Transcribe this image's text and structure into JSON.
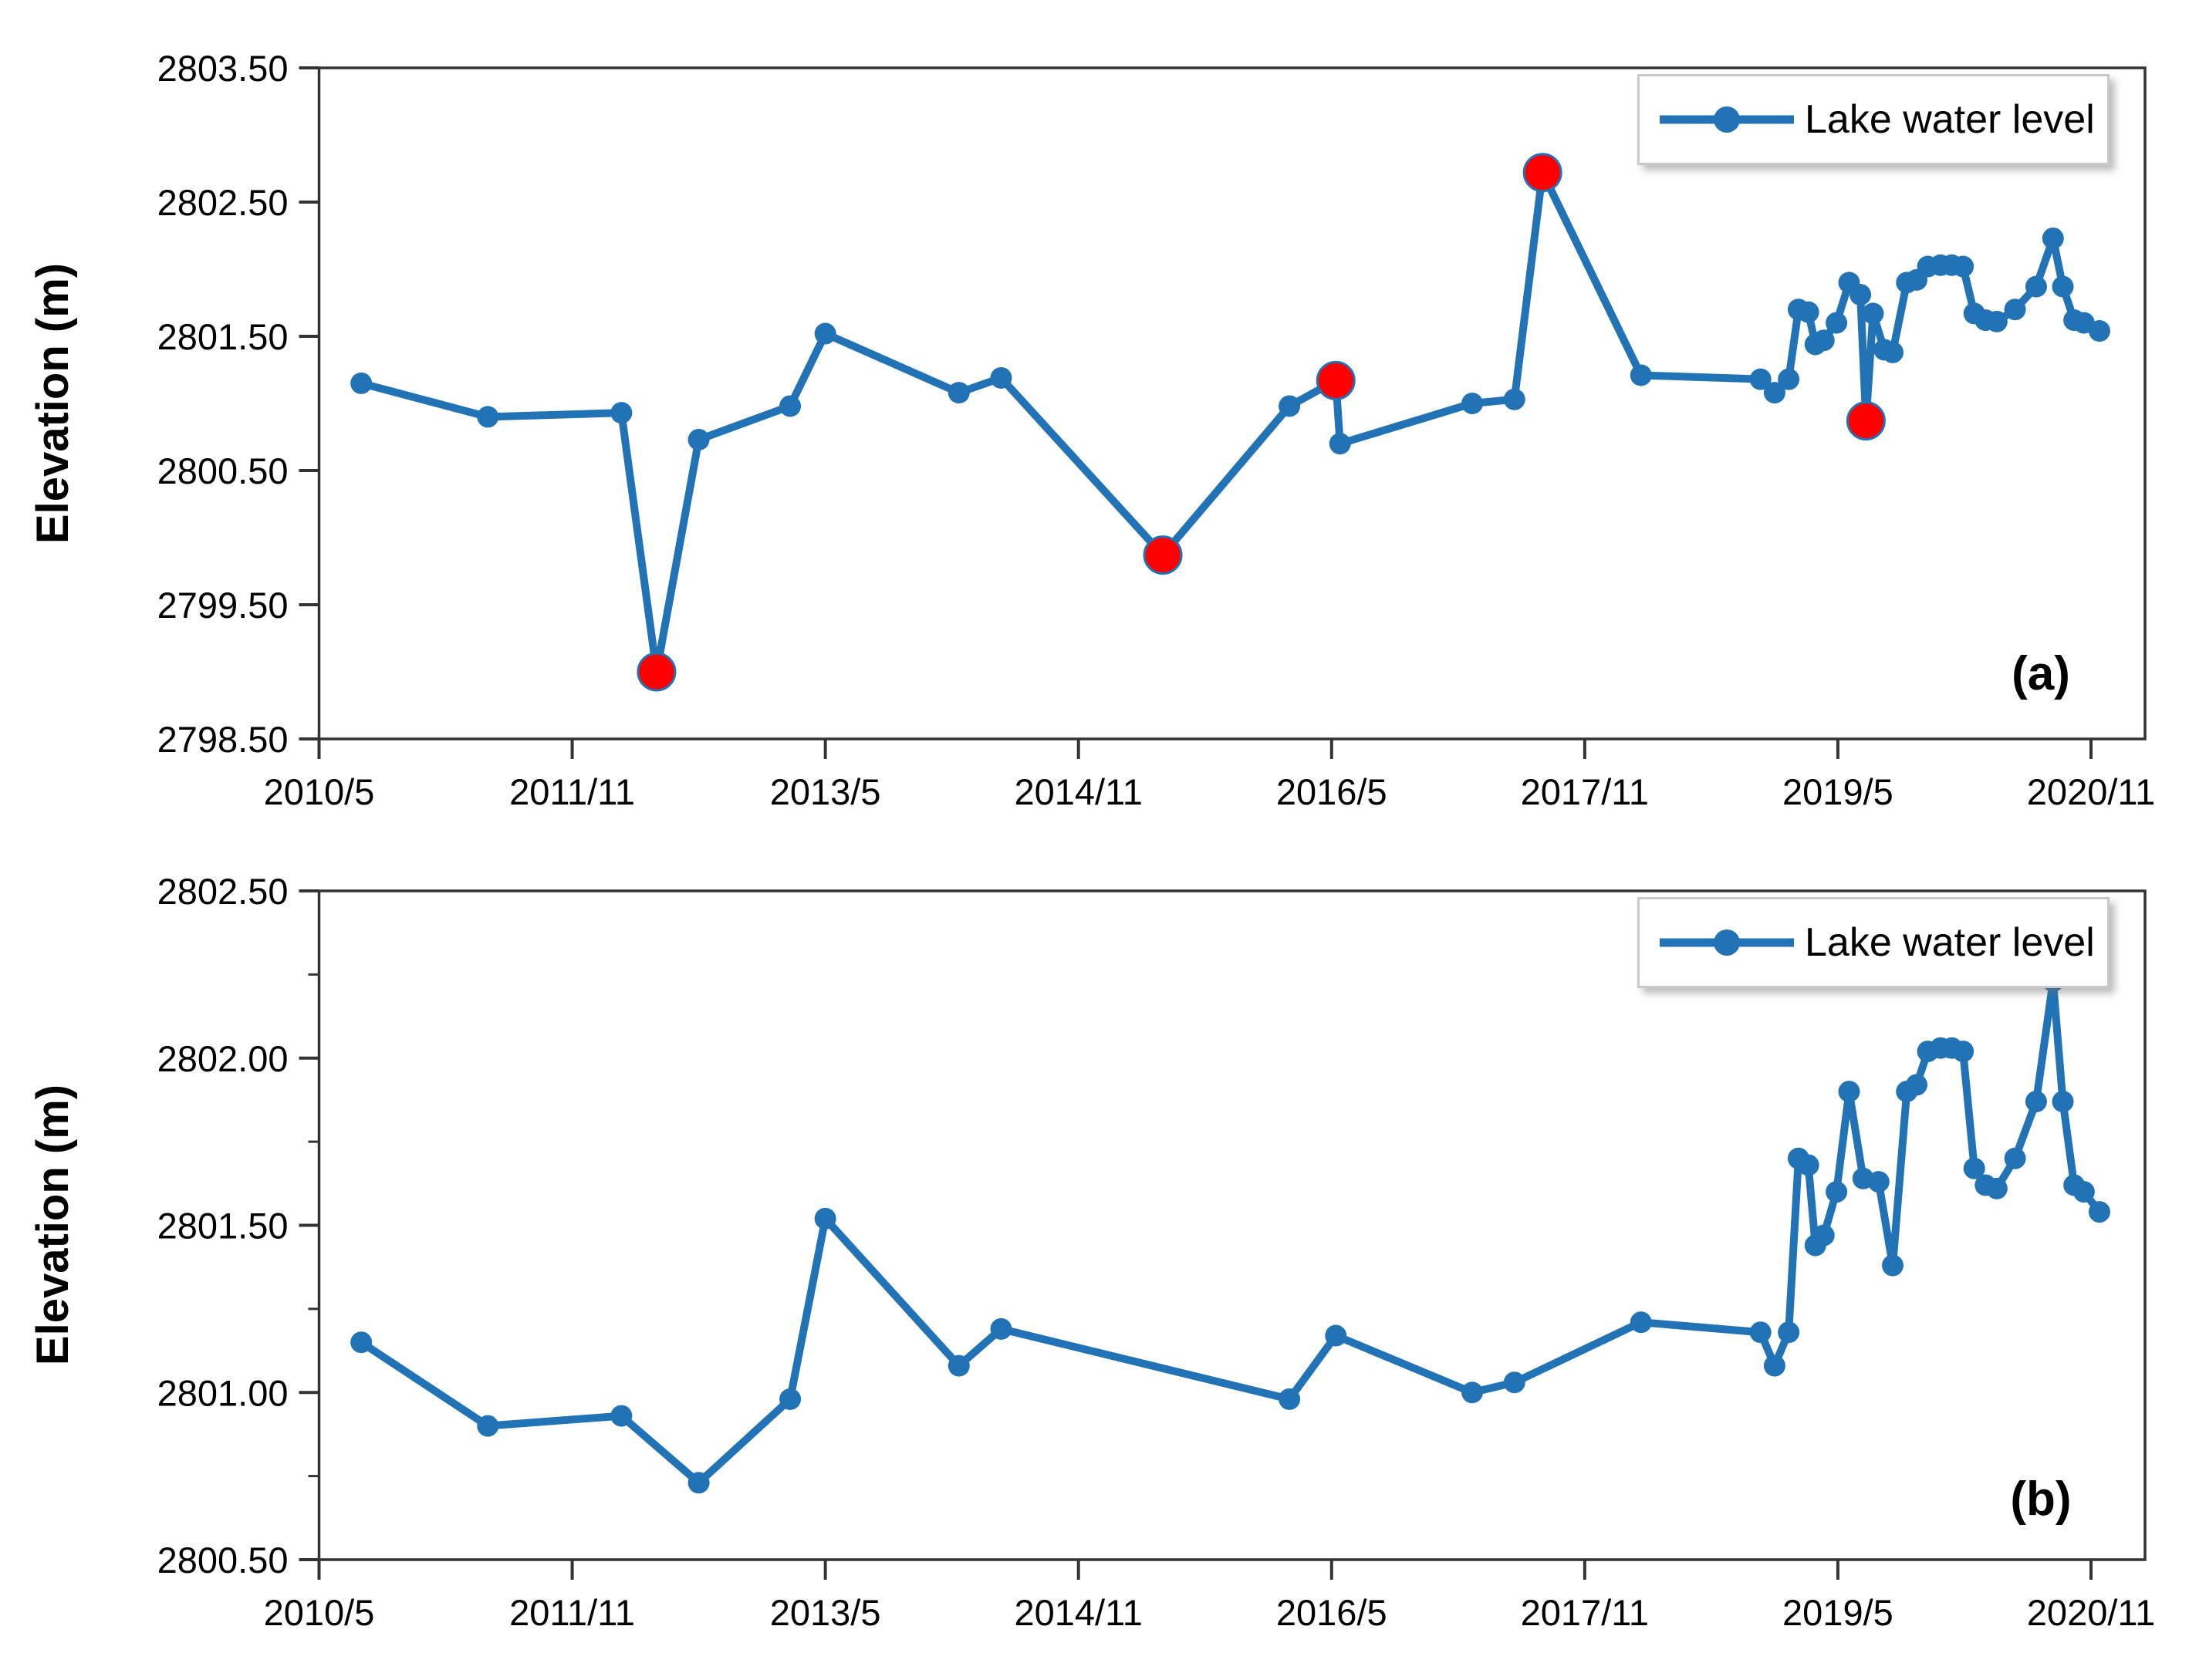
{
  "figure": {
    "background": "#ffffff",
    "accent_blue": "#2173b5",
    "outlier_red": "#ff0000",
    "axis_color": "#333333"
  },
  "chart_data": [
    {
      "type": "line",
      "panel_label": "(a)",
      "ylabel": "Elevation (m)",
      "xlabel": "",
      "legend": [
        "Lake water level"
      ],
      "legend_position": "top-right",
      "grid": false,
      "ylim": [
        2798.5,
        2803.5
      ],
      "ytick_step": 1.0,
      "ytick_labels": [
        "2798.50",
        "2799.50",
        "2800.50",
        "2801.50",
        "2802.50",
        "2803.50"
      ],
      "xtick_months": [
        0,
        18,
        36,
        54,
        72,
        90,
        108,
        126
      ],
      "xtick_labels": [
        "2010/5",
        "2011/11",
        "2013/5",
        "2014/11",
        "2016/5",
        "2017/11",
        "2019/5",
        "2020/11"
      ],
      "x_axis_note": "x values are months after 2010/5",
      "series": [
        {
          "name": "Lake water level",
          "x": [
            3,
            12,
            21.5,
            24,
            27,
            33.5,
            36,
            45.5,
            48.5,
            60,
            69,
            72.3,
            72.6,
            82,
            85,
            87,
            94,
            102.5,
            103.5,
            104.5,
            105.2,
            105.9,
            106.4,
            107,
            107.9,
            108.8,
            109.6,
            110,
            110.5,
            111.3,
            111.9,
            112.9,
            113.6,
            114.4,
            115.3,
            116.1,
            116.9,
            117.7,
            118.5,
            119.3,
            120.6,
            122.1,
            123.3,
            124,
            124.8,
            125.5,
            126.6
          ],
          "values": [
            2801.15,
            2800.9,
            2800.93,
            2799.0,
            2800.73,
            2800.98,
            2801.52,
            2801.08,
            2801.19,
            2799.87,
            2800.98,
            2801.17,
            2800.7,
            2801.0,
            2801.03,
            2802.72,
            2801.21,
            2801.18,
            2801.08,
            2801.18,
            2801.7,
            2801.68,
            2801.44,
            2801.47,
            2801.6,
            2801.9,
            2801.81,
            2800.87,
            2801.67,
            2801.4,
            2801.38,
            2801.9,
            2801.92,
            2802.02,
            2802.03,
            2802.03,
            2802.02,
            2801.67,
            2801.62,
            2801.61,
            2801.7,
            2801.87,
            2802.23,
            2801.87,
            2801.62,
            2801.6,
            2801.54
          ],
          "red_point_indices": [
            3,
            9,
            11,
            15,
            27
          ]
        }
      ]
    },
    {
      "type": "line",
      "panel_label": "(b)",
      "ylabel": "Elevation (m)",
      "xlabel": "",
      "legend": [
        "Lake water level"
      ],
      "legend_position": "top-right",
      "grid": false,
      "ylim": [
        2800.5,
        2802.5
      ],
      "ytick_step": 0.5,
      "y_minor_step": 0.25,
      "ytick_labels": [
        "2800.50",
        "2801.00",
        "2801.50",
        "2802.00",
        "2802.50"
      ],
      "xtick_months": [
        0,
        18,
        36,
        54,
        72,
        90,
        108,
        126
      ],
      "xtick_labels": [
        "2010/5",
        "2011/11",
        "2013/5",
        "2014/11",
        "2016/5",
        "2017/11",
        "2019/5",
        "2020/11"
      ],
      "x_axis_note": "x values are months after 2010/5",
      "series": [
        {
          "name": "Lake water level",
          "x": [
            3,
            12,
            21.5,
            27,
            33.5,
            36,
            45.5,
            48.5,
            69,
            72.3,
            82,
            85,
            94,
            102.5,
            103.5,
            104.5,
            105.2,
            105.9,
            106.4,
            107,
            107.9,
            108.8,
            109.8,
            110.9,
            111.9,
            112.9,
            113.6,
            114.4,
            115.3,
            116.1,
            116.9,
            117.7,
            118.5,
            119.3,
            120.6,
            122.1,
            123.3,
            124,
            124.8,
            125.5,
            126.6
          ],
          "values": [
            2801.15,
            2800.9,
            2800.93,
            2800.73,
            2800.98,
            2801.52,
            2801.08,
            2801.19,
            2800.98,
            2801.17,
            2801.0,
            2801.03,
            2801.21,
            2801.18,
            2801.08,
            2801.18,
            2801.7,
            2801.68,
            2801.44,
            2801.47,
            2801.6,
            2801.9,
            2801.64,
            2801.63,
            2801.38,
            2801.9,
            2801.92,
            2802.02,
            2802.03,
            2802.03,
            2802.02,
            2801.67,
            2801.62,
            2801.61,
            2801.7,
            2801.87,
            2802.23,
            2801.87,
            2801.62,
            2801.6,
            2801.54
          ],
          "red_point_indices": []
        }
      ]
    }
  ]
}
